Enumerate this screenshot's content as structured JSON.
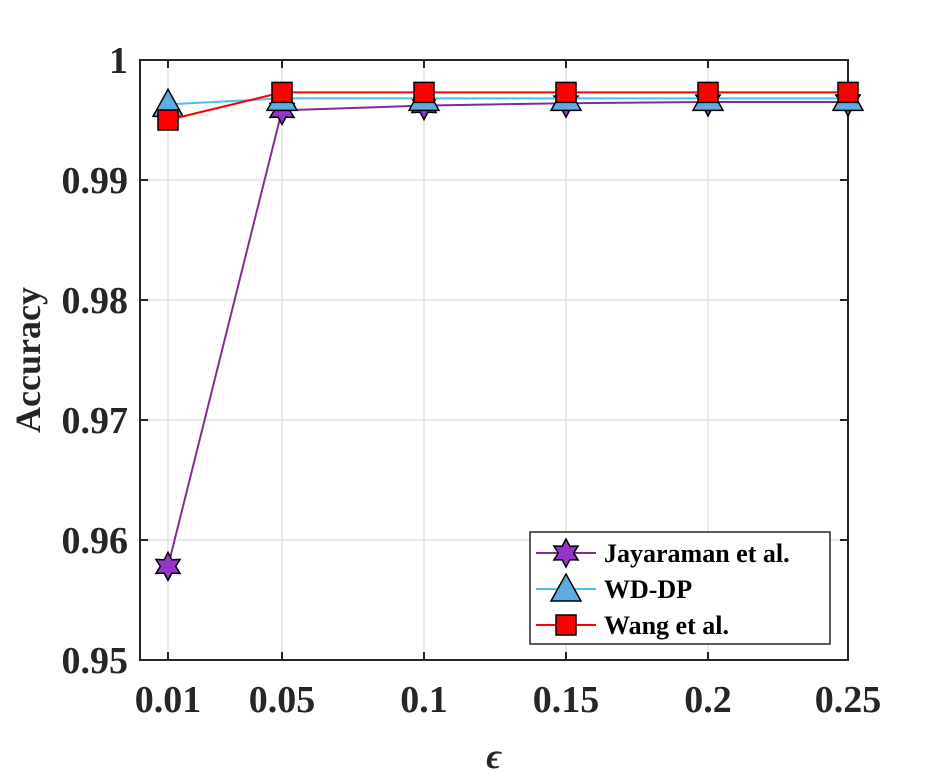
{
  "chart_data": {
    "type": "line",
    "title": "",
    "xlabel": "ϵ",
    "ylabel": "Accuracy",
    "x": [
      0.01,
      0.05,
      0.1,
      0.15,
      0.2,
      0.25
    ],
    "x_tick_labels": [
      "0.01",
      "0.05",
      "0.1",
      "0.15",
      "0.2",
      "0.25"
    ],
    "ylim": [
      0.95,
      1
    ],
    "y_ticks": [
      0.95,
      0.96,
      0.97,
      0.98,
      0.99,
      1
    ],
    "y_tick_labels": [
      "0.95",
      "0.96",
      "0.97",
      "0.98",
      "0.99",
      "1"
    ],
    "grid": true,
    "legend_position": "bottom-right",
    "series": [
      {
        "name": "Jayaraman et al.",
        "marker": "hexagram",
        "line_color": "#7E2F8E",
        "marker_fill": "#9933CC",
        "values": [
          0.9578,
          0.9958,
          0.9962,
          0.9964,
          0.9965,
          0.9965
        ]
      },
      {
        "name": "WD-DP",
        "marker": "triangle",
        "line_color": "#4DBEEE",
        "marker_fill": "#5DADE2",
        "values": [
          0.9963,
          0.9968,
          0.9968,
          0.9968,
          0.9968,
          0.9968
        ]
      },
      {
        "name": "Wang et al.",
        "marker": "square",
        "line_color": "#FF0000",
        "marker_fill": "#FF0000",
        "values": [
          0.995,
          0.9973,
          0.9973,
          0.9973,
          0.9973,
          0.9973
        ]
      }
    ]
  }
}
